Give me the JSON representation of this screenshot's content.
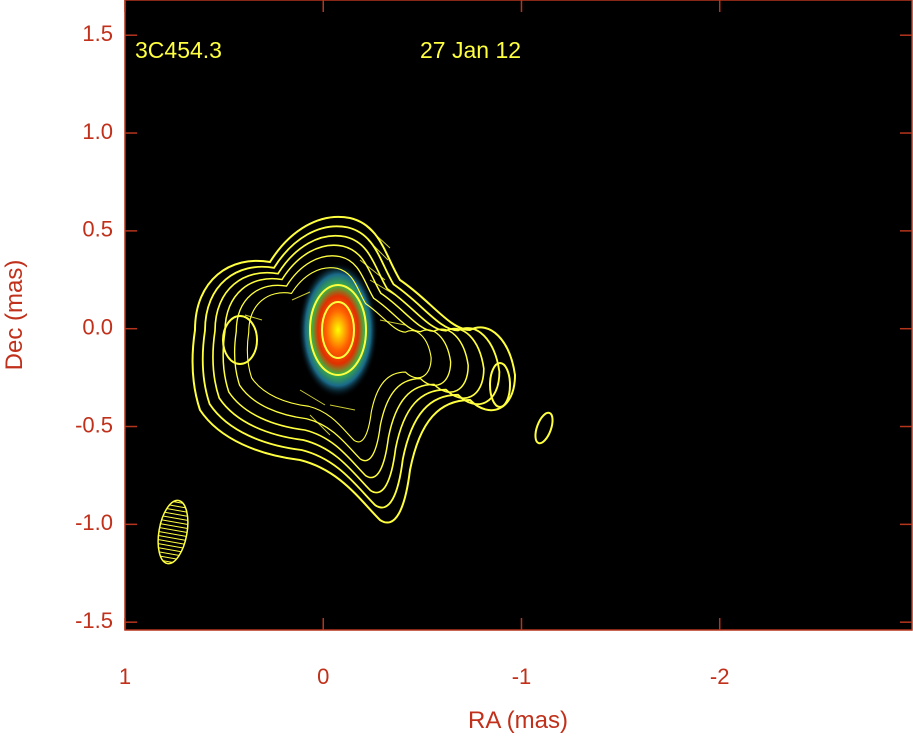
{
  "chart_data": {
    "type": "contour",
    "labels": [
      "3C454.3",
      "27 Jan 12"
    ],
    "xlabel": "RA (mas)",
    "ylabel": "Dec (mas)",
    "xlim": [
      1,
      -2.97
    ],
    "xticks": [
      1,
      0,
      -1,
      -2
    ],
    "ylim": [
      -1.54,
      1.68
    ],
    "yticks": [
      {
        "value": -1.5,
        "label": "-1.5"
      },
      {
        "value": -1,
        "label": "-1.0"
      },
      -0.5,
      {
        "value": 0,
        "label": "0.0"
      },
      0.5,
      {
        "value": 1,
        "label": "1.0"
      },
      1.5
    ],
    "background": "#000000",
    "frame_color": "#b5341c",
    "contour_color": "#ffff40"
  }
}
